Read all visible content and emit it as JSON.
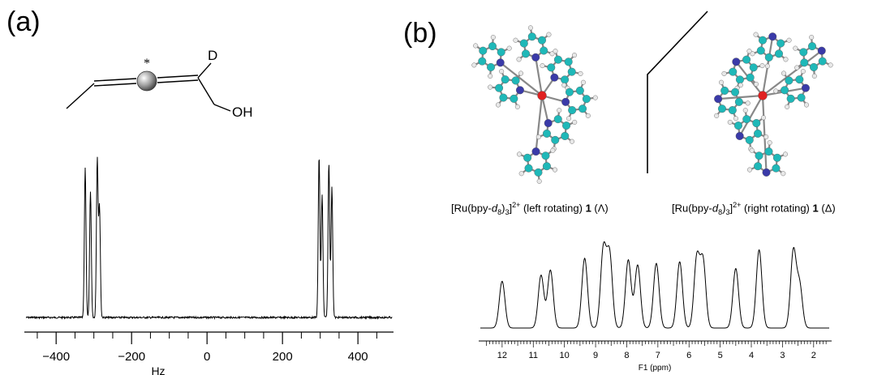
{
  "panel_a": {
    "label": "(a)",
    "molecule": {
      "d_label": "D",
      "oh_label": "OH",
      "chiral_mark": "*"
    },
    "chart_data": {
      "type": "line",
      "xlabel": "Hz",
      "ylabel": "",
      "xlim": [
        -480,
        490
      ],
      "x_ticks": [
        -400,
        -200,
        0,
        200,
        400
      ],
      "x_tick_labels": [
        "−400",
        "−200",
        "0",
        "200",
        "400"
      ],
      "peaks": [
        {
          "x": -323,
          "height": 0.85
        },
        {
          "x": -309,
          "height": 0.72
        },
        {
          "x": -291,
          "height": 0.9
        },
        {
          "x": -285,
          "height": 0.62
        },
        {
          "x": 297,
          "height": 0.92
        },
        {
          "x": 305,
          "height": 0.7
        },
        {
          "x": 323,
          "height": 0.88
        },
        {
          "x": 331,
          "height": 0.74
        }
      ]
    }
  },
  "panel_b": {
    "label": "(b)",
    "caption_left": {
      "prefix": "[Ru(bpy-",
      "italic": "d",
      "sub1": "8",
      "mid": ")",
      "sub2": "3",
      "bracket": "]",
      "sup": "2+",
      "text": " (left rotating) ",
      "bold": "1",
      "suffix": " (Λ)"
    },
    "caption_right": {
      "prefix": "[Ru(bpy-",
      "italic": "d",
      "sub1": "8",
      "mid": ")",
      "sub2": "3",
      "bracket": "]",
      "sup": "2+",
      "text": " (right rotating) ",
      "bold": "1",
      "suffix": " (Δ)"
    },
    "colors": {
      "carbon": "#1fb8b8",
      "nitrogen": "#3a3aa8",
      "ruthenium": "#e02020",
      "hydrogen": "#e8e8e8"
    },
    "chart_data": {
      "type": "line",
      "xlabel": "F1 (ppm)",
      "ylabel": "",
      "xlim": [
        12.7,
        1.5
      ],
      "x_ticks": [
        12,
        11,
        10,
        9,
        8,
        7,
        6,
        5,
        4,
        3,
        2
      ],
      "x_tick_labels": [
        "12",
        "11",
        "10",
        "9",
        "8",
        "7",
        "6",
        "5",
        "4",
        "3",
        "2"
      ],
      "peaks": [
        {
          "x": 12.0,
          "height": 0.55
        },
        {
          "x": 10.75,
          "height": 0.62
        },
        {
          "x": 10.45,
          "height": 0.68
        },
        {
          "x": 9.35,
          "height": 0.82
        },
        {
          "x": 8.75,
          "height": 0.92
        },
        {
          "x": 8.55,
          "height": 0.86
        },
        {
          "x": 7.95,
          "height": 0.8
        },
        {
          "x": 7.65,
          "height": 0.74
        },
        {
          "x": 7.05,
          "height": 0.76
        },
        {
          "x": 6.3,
          "height": 0.78
        },
        {
          "x": 5.75,
          "height": 0.82
        },
        {
          "x": 5.55,
          "height": 0.78
        },
        {
          "x": 4.5,
          "height": 0.7
        },
        {
          "x": 3.75,
          "height": 0.92
        },
        {
          "x": 2.65,
          "height": 0.9
        },
        {
          "x": 2.45,
          "height": 0.5
        }
      ]
    }
  }
}
